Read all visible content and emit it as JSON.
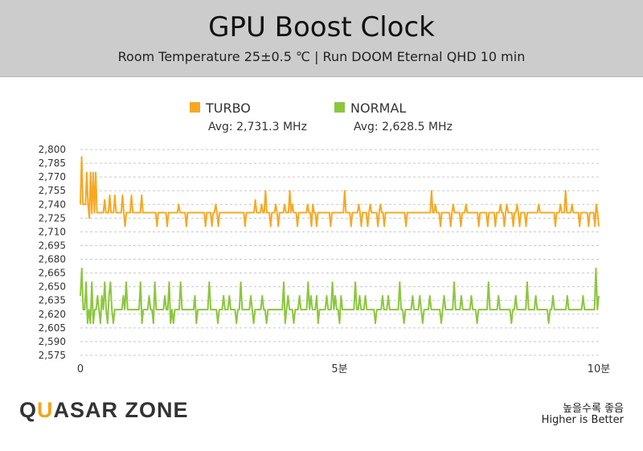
{
  "header": {
    "title": "GPU Boost Clock",
    "subtitle": "Room Temperature 25±0.5 ℃  |  Run DOOM Eternal QHD 10 min"
  },
  "logo": {
    "text_a": "QU",
    "text_b": "ASAR ZONE"
  },
  "footer": {
    "note_line1": "높을수록 좋음",
    "note_line2": "Higher is Better"
  },
  "colors": {
    "turbo": "#f7a823",
    "normal": "#8cc63f",
    "grid": "#c8c8c8"
  },
  "chart_data": {
    "type": "line",
    "title": "GPU Boost Clock",
    "subtitle": "Room Temperature 25±0.5 ℃  |  Run DOOM Eternal QHD 10 min",
    "xlabel": "",
    "ylabel": "",
    "x_ticks": [
      "0",
      "5분",
      "10분"
    ],
    "xlim": [
      0,
      10
    ],
    "ylim": [
      2575,
      2800
    ],
    "y_ticks": [
      "2,800",
      "2,785",
      "2,770",
      "2,755",
      "2,740",
      "2,725",
      "2,710",
      "2,695",
      "2,680",
      "2,665",
      "2,650",
      "2,635",
      "2,620",
      "2,605",
      "2,590",
      "2,575"
    ],
    "grid": true,
    "legend_position": "top",
    "series": [
      {
        "name": "TURBO",
        "avg_label": "Avg: 2,731.3 MHz",
        "color": "#f7a823",
        "baseline": 2731,
        "values": [
          2740,
          2792,
          2740,
          2740,
          2740,
          2775,
          2740,
          2725,
          2775,
          2730,
          2775,
          2731,
          2775,
          2731,
          2731,
          2731,
          2731,
          2731,
          2731,
          2745,
          2731,
          2731,
          2731,
          2750,
          2731,
          2731,
          2731,
          2750,
          2731,
          2731,
          2731,
          2731,
          2731,
          2750,
          2731,
          2716,
          2731,
          2731,
          2731,
          2731,
          2750,
          2731,
          2731,
          2731,
          2731,
          2731,
          2731,
          2731,
          2750,
          2731,
          2731,
          2731,
          2731,
          2731,
          2731,
          2731,
          2731,
          2731,
          2731,
          2731,
          2716,
          2731,
          2731,
          2731,
          2731,
          2731,
          2731,
          2731,
          2716,
          2731,
          2731,
          2731,
          2731,
          2731,
          2731,
          2731,
          2731,
          2740,
          2731,
          2731,
          2731,
          2731,
          2731,
          2716,
          2731,
          2731,
          2731,
          2731,
          2731,
          2731,
          2731,
          2731,
          2731,
          2731,
          2731,
          2731,
          2731,
          2731,
          2716,
          2731,
          2731,
          2731,
          2731,
          2716,
          2731,
          2731,
          2740,
          2731,
          2716,
          2731,
          2731,
          2731,
          2731,
          2731,
          2731,
          2731,
          2731,
          2731,
          2731,
          2731,
          2731,
          2731,
          2731,
          2731,
          2731,
          2731,
          2731,
          2731,
          2731,
          2716,
          2731,
          2731,
          2731,
          2731,
          2731,
          2731,
          2731,
          2745,
          2731,
          2731,
          2731,
          2731,
          2740,
          2731,
          2731,
          2755,
          2731,
          2731,
          2731,
          2716,
          2731,
          2731,
          2731,
          2740,
          2731,
          2716,
          2731,
          2731,
          2731,
          2731,
          2740,
          2731,
          2731,
          2731,
          2755,
          2731,
          2740,
          2731,
          2731,
          2731,
          2716,
          2731,
          2731,
          2731,
          2731,
          2731,
          2731,
          2731,
          2740,
          2731,
          2731,
          2716,
          2740,
          2731,
          2731,
          2716,
          2731,
          2731,
          2731,
          2731,
          2731,
          2731,
          2731,
          2731,
          2731,
          2731,
          2716,
          2731,
          2731,
          2731,
          2731,
          2731,
          2731,
          2731,
          2731,
          2731,
          2731,
          2755,
          2731,
          2731,
          2731,
          2731,
          2716,
          2731,
          2731,
          2731,
          2731,
          2731,
          2740,
          2731,
          2716,
          2731,
          2731,
          2731,
          2731,
          2716,
          2731,
          2740,
          2731,
          2731,
          2731,
          2731,
          2731,
          2716,
          2731,
          2740,
          2731,
          2731,
          2716,
          2731,
          2731,
          2731,
          2731,
          2731,
          2731,
          2731,
          2731,
          2731,
          2731,
          2731,
          2731,
          2731,
          2731,
          2731,
          2731,
          2716,
          2731,
          2731,
          2731,
          2731,
          2731,
          2731,
          2731,
          2731,
          2731,
          2731,
          2731,
          2731,
          2731,
          2731,
          2731,
          2731,
          2731,
          2731,
          2731,
          2755,
          2731,
          2731,
          2740,
          2731,
          2731,
          2731,
          2716,
          2731,
          2731,
          2731,
          2731,
          2731,
          2731,
          2731,
          2716,
          2731,
          2740,
          2731,
          2731,
          2731,
          2731,
          2731,
          2716,
          2731,
          2731,
          2731,
          2740,
          2731,
          2731,
          2731,
          2731,
          2731,
          2731,
          2731,
          2731,
          2731,
          2716,
          2731,
          2731,
          2731,
          2731,
          2731,
          2731,
          2716,
          2731,
          2731,
          2731,
          2731,
          2731,
          2716,
          2731,
          2731,
          2731,
          2740,
          2731,
          2731,
          2716,
          2731,
          2740,
          2731,
          2731,
          2731,
          2731,
          2716,
          2731,
          2731,
          2740,
          2731,
          2716,
          2731,
          2731,
          2731,
          2731,
          2716,
          2731,
          2731,
          2731,
          2731,
          2731,
          2731,
          2731,
          2731,
          2731,
          2740,
          2731,
          2731,
          2731,
          2731,
          2731,
          2731,
          2731,
          2731,
          2731,
          2731,
          2731,
          2731,
          2716,
          2731,
          2731,
          2731,
          2740,
          2731,
          2731,
          2731,
          2755,
          2731,
          2731,
          2731,
          2731,
          2740,
          2731,
          2731,
          2731,
          2731,
          2731,
          2716,
          2731,
          2731,
          2731,
          2731,
          2731,
          2731,
          2716,
          2731,
          2731,
          2731,
          2731,
          2716,
          2740,
          2731,
          2716
        ]
      },
      {
        "name": "NORMAL",
        "avg_label": "Avg: 2,628.5 MHz",
        "color": "#8cc63f",
        "baseline": 2625,
        "values": [
          2640,
          2670,
          2625,
          2625,
          2655,
          2610,
          2625,
          2610,
          2655,
          2610,
          2625,
          2625,
          2640,
          2625,
          2610,
          2640,
          2625,
          2655,
          2625,
          2610,
          2640,
          2655,
          2625,
          2610,
          2625,
          2625,
          2625,
          2625,
          2625,
          2625,
          2640,
          2625,
          2655,
          2625,
          2625,
          2625,
          2625,
          2625,
          2625,
          2625,
          2625,
          2625,
          2655,
          2610,
          2625,
          2625,
          2625,
          2625,
          2640,
          2625,
          2625,
          2610,
          2655,
          2625,
          2625,
          2625,
          2625,
          2625,
          2625,
          2640,
          2625,
          2625,
          2655,
          2610,
          2625,
          2610,
          2625,
          2625,
          2625,
          2625,
          2655,
          2625,
          2625,
          2625,
          2625,
          2625,
          2625,
          2625,
          2625,
          2625,
          2640,
          2610,
          2625,
          2625,
          2625,
          2625,
          2625,
          2625,
          2625,
          2625,
          2655,
          2625,
          2625,
          2625,
          2625,
          2625,
          2610,
          2625,
          2625,
          2625,
          2640,
          2625,
          2625,
          2625,
          2640,
          2625,
          2625,
          2625,
          2625,
          2610,
          2625,
          2625,
          2655,
          2625,
          2625,
          2625,
          2625,
          2625,
          2625,
          2640,
          2625,
          2610,
          2625,
          2625,
          2625,
          2625,
          2625,
          2640,
          2625,
          2625,
          2610,
          2625,
          2625,
          2625,
          2625,
          2625,
          2625,
          2625,
          2625,
          2625,
          2625,
          2625,
          2655,
          2610,
          2625,
          2640,
          2625,
          2625,
          2625,
          2610,
          2625,
          2625,
          2625,
          2640,
          2625,
          2625,
          2625,
          2625,
          2625,
          2655,
          2625,
          2640,
          2625,
          2625,
          2625,
          2640,
          2610,
          2625,
          2625,
          2625,
          2625,
          2625,
          2640,
          2625,
          2625,
          2625,
          2655,
          2625,
          2640,
          2625,
          2625,
          2610,
          2640,
          2625,
          2625,
          2625,
          2625,
          2625,
          2625,
          2625,
          2625,
          2625,
          2655,
          2625,
          2625,
          2640,
          2625,
          2625,
          2625,
          2640,
          2625,
          2625,
          2625,
          2625,
          2625,
          2625,
          2610,
          2625,
          2625,
          2625,
          2625,
          2640,
          2625,
          2625,
          2625,
          2640,
          2625,
          2625,
          2625,
          2625,
          2625,
          2625,
          2625,
          2655,
          2625,
          2625,
          2610,
          2625,
          2625,
          2625,
          2625,
          2625,
          2640,
          2625,
          2625,
          2625,
          2625,
          2640,
          2625,
          2610,
          2625,
          2625,
          2625,
          2625,
          2640,
          2625,
          2625,
          2625,
          2625,
          2625,
          2625,
          2625,
          2610,
          2625,
          2640,
          2625,
          2625,
          2625,
          2625,
          2625,
          2625,
          2655,
          2625,
          2625,
          2625,
          2625,
          2640,
          2625,
          2625,
          2625,
          2625,
          2625,
          2625,
          2640,
          2625,
          2625,
          2625,
          2610,
          2625,
          2625,
          2625,
          2625,
          2625,
          2625,
          2625,
          2655,
          2625,
          2625,
          2625,
          2625,
          2625,
          2625,
          2640,
          2625,
          2625,
          2625,
          2625,
          2625,
          2625,
          2625,
          2625,
          2610,
          2625,
          2625,
          2640,
          2625,
          2625,
          2625,
          2625,
          2625,
          2625,
          2625,
          2655,
          2625,
          2625,
          2625,
          2625,
          2625,
          2640,
          2625,
          2625,
          2625,
          2625,
          2625,
          2625,
          2625,
          2625,
          2610,
          2625,
          2625,
          2640,
          2625,
          2625,
          2625,
          2625,
          2625,
          2625,
          2625,
          2625,
          2625,
          2640,
          2625,
          2625,
          2625,
          2625,
          2625,
          2625,
          2625,
          2625,
          2625,
          2625,
          2640,
          2625,
          2625,
          2625,
          2625,
          2625,
          2625,
          2625,
          2625,
          2670,
          2625,
          2640
        ]
      }
    ]
  }
}
